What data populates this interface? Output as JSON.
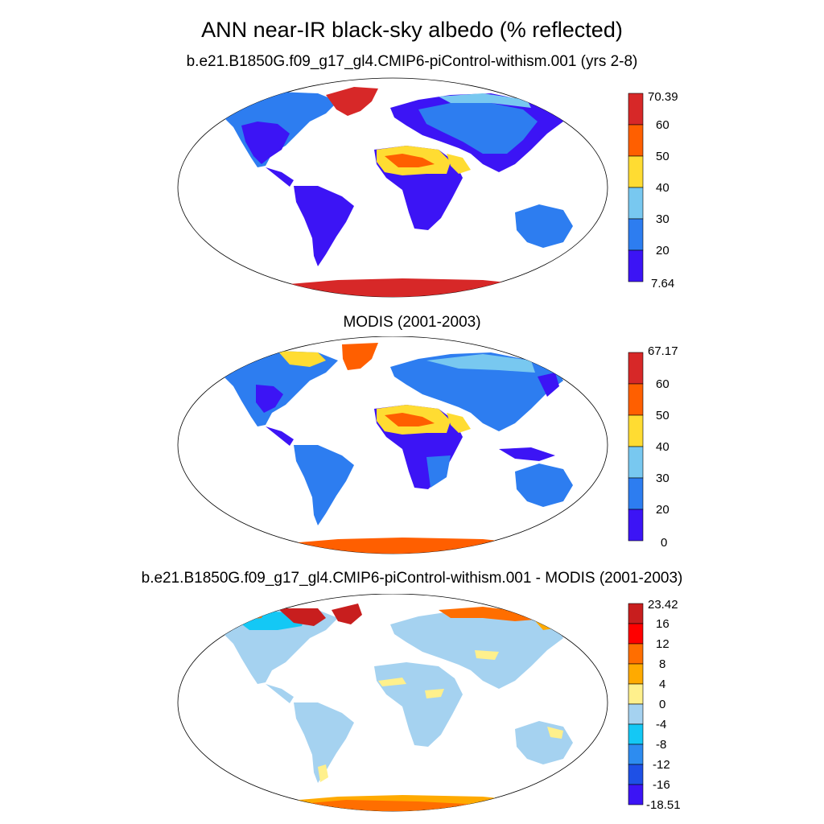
{
  "title": "ANN near-IR black-sky albedo (% reflected)",
  "panels": [
    {
      "title": "b.e21.B1850G.f09_g17_gl4.CMIP6-piControl-withism.001 (yrs 2-8)",
      "colorbar": {
        "max_label": "70.39",
        "min_label": "7.64",
        "levels": [
          "60",
          "50",
          "40",
          "30",
          "20"
        ],
        "colors": [
          "#3c14f5",
          "#2d7df0",
          "#78c8f0",
          "#ffdc32",
          "#ff5f00",
          "#d72828"
        ]
      }
    },
    {
      "title": "MODIS (2001-2003)",
      "colorbar": {
        "max_label": "67.17",
        "min_label": "0",
        "levels": [
          "60",
          "50",
          "40",
          "30",
          "20"
        ],
        "colors": [
          "#3c14f5",
          "#2d7df0",
          "#78c8f0",
          "#ffdc32",
          "#ff5f00",
          "#d72828"
        ]
      }
    },
    {
      "title": "b.e21.B1850G.f09_g17_gl4.CMIP6-piControl-withism.001 - MODIS (2001-2003)",
      "colorbar": {
        "max_label": "23.42",
        "min_label": "-18.51",
        "levels": [
          "16",
          "12",
          "8",
          "4",
          "0",
          "-4",
          "-8",
          "-12",
          "-16"
        ],
        "colors": [
          "#3c14f5",
          "#1e50e6",
          "#2d8cf0",
          "#14c8f5",
          "#a5d2f0",
          "#fff08c",
          "#ffaa00",
          "#ff6e00",
          "#ff0000",
          "#c81e1e"
        ]
      }
    }
  ]
}
